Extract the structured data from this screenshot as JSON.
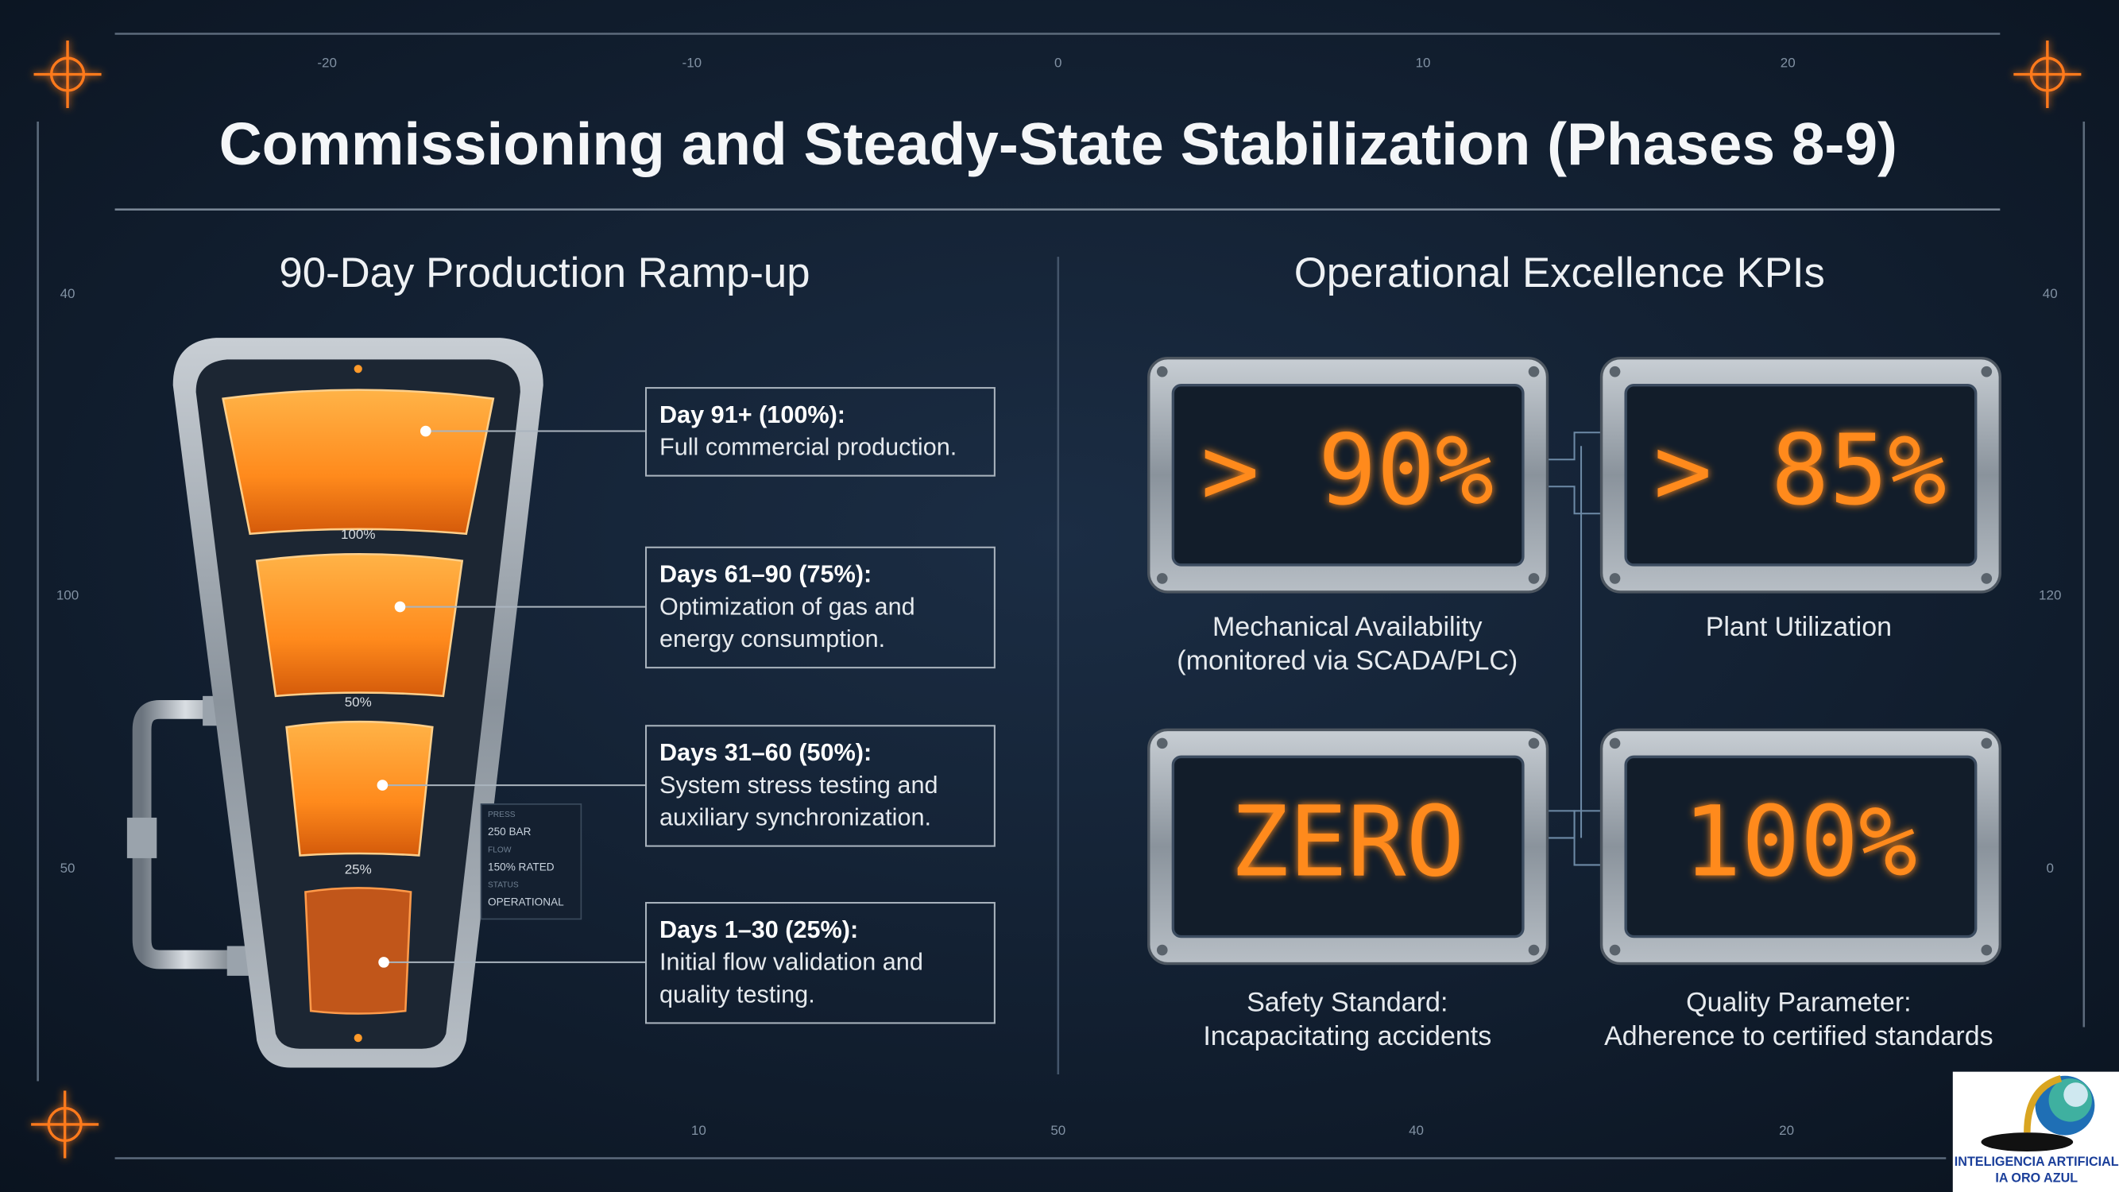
{
  "header": {
    "title": "Commissioning and Steady-State Stabilization (Phases 8-9)"
  },
  "ruler": {
    "top": [
      "-20",
      "-10",
      "0",
      "10",
      "20"
    ],
    "left": [
      "40",
      "100",
      "50"
    ],
    "right": [
      "40",
      "120",
      "0"
    ],
    "bottom": [
      "10",
      "50",
      "40",
      "20"
    ]
  },
  "ramp_up": {
    "title": "90-Day Production Ramp-up",
    "gauge_labels": [
      "100%",
      "50%",
      "25%"
    ],
    "readouts": [
      "PRESS",
      "250 BAR",
      "FLOW",
      "150% RATED",
      "STATUS",
      "OPERATIONAL"
    ],
    "phases": [
      {
        "heading": "Day 91+ (100%):",
        "text": [
          "Full commercial production."
        ]
      },
      {
        "heading": "Days 61–90 (75%):",
        "text": [
          "Optimization of gas and",
          "energy consumption."
        ]
      },
      {
        "heading": "Days 31–60 (50%):",
        "text": [
          "System stress testing and",
          "auxiliary synchronization."
        ]
      },
      {
        "heading": "Days 1–30 (25%):",
        "text": [
          "Initial flow validation and",
          "quality testing."
        ]
      }
    ]
  },
  "kpis": {
    "title": "Operational Excellence KPIs",
    "items": [
      {
        "display": "> 90%",
        "caption": [
          "Mechanical Availability",
          "(monitored via SCADA/PLC)"
        ]
      },
      {
        "display": "> 85%",
        "caption": [
          "Plant Utilization"
        ]
      },
      {
        "display": "ZERO",
        "caption": [
          "Safety Standard:",
          "Incapacitating accidents"
        ]
      },
      {
        "display": "100%",
        "caption": [
          "Quality Parameter:",
          "Adherence to certified standards"
        ]
      }
    ]
  },
  "logo": {
    "lines": [
      "INTELIGENCIA ARTIFICIAL",
      "IA ORO AZUL"
    ]
  }
}
